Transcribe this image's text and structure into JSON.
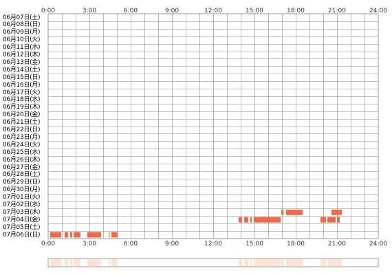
{
  "hours": [
    "0:00",
    "3:00",
    "6:00",
    "9:00",
    "12:00",
    "15:00",
    "18:00",
    "21:00",
    "24:00"
  ],
  "days": [
    "06月07日(土)",
    "06月08日(日)",
    "06月09日(月)",
    "06月10日(火)",
    "06月11日(水)",
    "06月12日(木)",
    "06月13日(金)",
    "06月14日(土)",
    "06月15日(日)",
    "06月16日(月)",
    "06月17日(火)",
    "06月18日(水)",
    "06月19日(木)",
    "06月20日(金)",
    "06月21日(土)",
    "06月22日(日)",
    "06月23日(月)",
    "06月24日(火)",
    "06月25日(水)",
    "06月26日(木)",
    "06月27日(金)",
    "06月28日(土)",
    "06月29日(日)",
    "06月30日(月)",
    "07月01日(火)",
    "07月02日(水)",
    "07月03日(木)",
    "07月04日(金)",
    "07月05日(土)",
    "07月06日(日)"
  ],
  "colors": {
    "activity": "#f06a4a",
    "activity_light": "#fbb07a",
    "strip": "#fde3d3",
    "grid": "#888888",
    "border": "#999999"
  },
  "activity": [
    {
      "day": "07月03日(木)",
      "intervals": [
        [
          16.95,
          17.05
        ],
        [
          17.05,
          17.15
        ],
        [
          17.3,
          18.5
        ],
        [
          20.6,
          21.35
        ]
      ]
    },
    {
      "day": "07月04日(金)",
      "intervals": [
        [
          13.85,
          14.1
        ],
        [
          14.25,
          14.55
        ],
        [
          14.7,
          14.8
        ],
        [
          14.95,
          16.9
        ],
        [
          19.8,
          20.2
        ],
        [
          20.3,
          20.9
        ],
        [
          21.0,
          21.2
        ]
      ]
    },
    {
      "day": "07月06日(日)",
      "intervals": [
        [
          0.15,
          0.95
        ],
        [
          1.2,
          1.45
        ],
        [
          1.6,
          1.75
        ],
        [
          1.85,
          2.35
        ],
        [
          2.85,
          3.85
        ],
        [
          4.4,
          4.5
        ],
        [
          4.6,
          5.05
        ]
      ]
    }
  ]
}
